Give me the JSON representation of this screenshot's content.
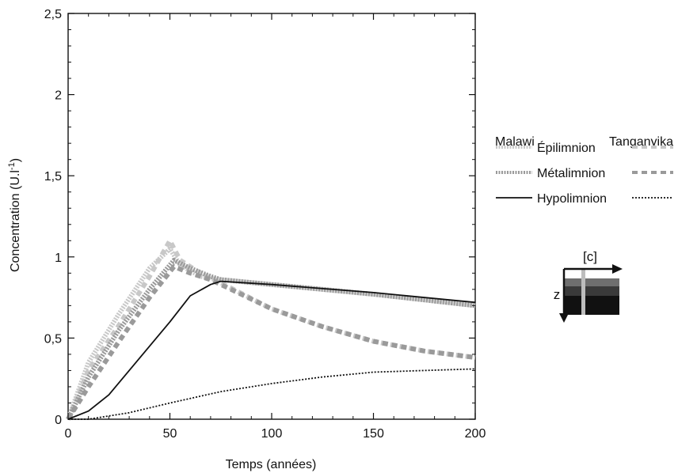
{
  "chart_data": {
    "type": "line",
    "xlabel": "Temps (années)",
    "ylabel_main": "Concentration (U.l",
    "ylabel_sup": "-1",
    "ylabel_close": ")",
    "xlim": [
      0,
      200
    ],
    "ylim": [
      0,
      2.5
    ],
    "xticks": [
      {
        "value": 0,
        "label": "0"
      },
      {
        "value": 50,
        "label": "50"
      },
      {
        "value": 100,
        "label": "100"
      },
      {
        "value": 150,
        "label": "150"
      },
      {
        "value": 200,
        "label": "200"
      }
    ],
    "yticks": [
      {
        "value": 0,
        "label": "0"
      },
      {
        "value": 0.5,
        "label": "0,5"
      },
      {
        "value": 1,
        "label": "1"
      },
      {
        "value": 1.5,
        "label": "1,5"
      },
      {
        "value": 2,
        "label": "2"
      },
      {
        "value": 2.5,
        "label": "2,5"
      }
    ],
    "grid": false,
    "legend": {
      "position": "right",
      "left_heading": "Malawi",
      "right_heading": "Tanganyika",
      "rows": [
        "Épilimnion",
        "Métalimnion",
        "Hypolimnion"
      ]
    },
    "series": [
      {
        "name": "Épilimnion",
        "lake": "Malawi",
        "color": "#c8c8c8",
        "style": "dotted-thick",
        "x": [
          0,
          10,
          25,
          40,
          50,
          55,
          65,
          75,
          100,
          150,
          200
        ],
        "y": [
          0,
          0.35,
          0.65,
          0.93,
          1.05,
          0.95,
          0.88,
          0.86,
          0.83,
          0.77,
          0.7
        ]
      },
      {
        "name": "Épilimnion",
        "lake": "Tanganyika",
        "color": "#c8c8c8",
        "style": "dashed-thick",
        "x": [
          0,
          10,
          25,
          40,
          50,
          55,
          65,
          75,
          100,
          125,
          150,
          175,
          200
        ],
        "y": [
          0,
          0.3,
          0.58,
          0.88,
          1.1,
          0.98,
          0.9,
          0.84,
          0.68,
          0.57,
          0.48,
          0.42,
          0.38
        ]
      },
      {
        "name": "Métalimnion",
        "lake": "Malawi",
        "color": "#9a9a9a",
        "style": "dotted-thick",
        "x": [
          0,
          10,
          25,
          40,
          52,
          60,
          70,
          75,
          100,
          150,
          200
        ],
        "y": [
          0,
          0.26,
          0.55,
          0.8,
          0.98,
          0.93,
          0.88,
          0.86,
          0.83,
          0.77,
          0.7
        ]
      },
      {
        "name": "Métalimnion",
        "lake": "Tanganyika",
        "color": "#9a9a9a",
        "style": "dashed-thick",
        "x": [
          0,
          10,
          25,
          40,
          52,
          60,
          70,
          80,
          100,
          125,
          150,
          175,
          200
        ],
        "y": [
          0,
          0.2,
          0.48,
          0.75,
          0.94,
          0.9,
          0.86,
          0.8,
          0.68,
          0.57,
          0.48,
          0.42,
          0.38
        ]
      },
      {
        "name": "Hypolimnion",
        "lake": "Malawi",
        "color": "#111111",
        "style": "solid",
        "x": [
          0,
          10,
          20,
          30,
          40,
          50,
          60,
          70,
          75,
          100,
          150,
          200
        ],
        "y": [
          0,
          0.05,
          0.15,
          0.3,
          0.45,
          0.6,
          0.76,
          0.83,
          0.85,
          0.83,
          0.78,
          0.72
        ]
      },
      {
        "name": "Hypolimnion",
        "lake": "Tanganyika",
        "color": "#111111",
        "style": "dotted-thin",
        "x": [
          0,
          10,
          20,
          30,
          50,
          75,
          100,
          125,
          150,
          175,
          200
        ],
        "y": [
          0,
          0.0,
          0.02,
          0.04,
          0.1,
          0.17,
          0.22,
          0.26,
          0.29,
          0.3,
          0.31
        ]
      }
    ],
    "inset": {
      "top_label": "[c]",
      "side_label": "z"
    }
  }
}
